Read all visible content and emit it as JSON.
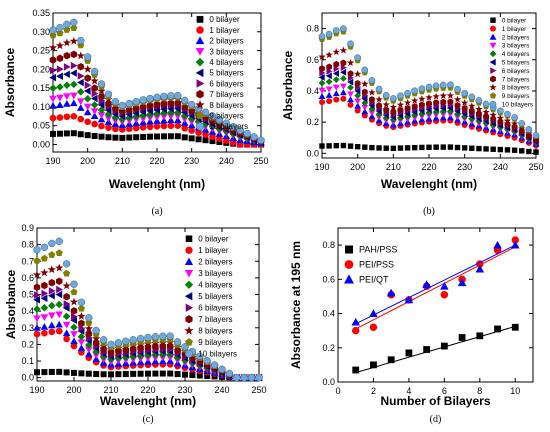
{
  "colors": {
    "s0": "#000000",
    "s1": "#ff0000",
    "s2": "#0000ff",
    "s3": "#ff00ff",
    "s4": "#008000",
    "s5": "#000080",
    "s6": "#800080",
    "s7": "#800000",
    "s8": "#808000",
    "s9": "#6fa8dc"
  },
  "chart_data": [
    {
      "type": "scatter",
      "caption": "(a)",
      "xlabel": "Wavelenght (nm)",
      "ylabel": "Absorbance",
      "xlim": [
        190,
        250
      ],
      "ylim": [
        -0.02,
        0.35
      ],
      "xticks": [
        190,
        200,
        210,
        220,
        230,
        240,
        250
      ],
      "yticks": [
        0.0,
        0.05,
        0.1,
        0.15,
        0.2,
        0.25,
        0.3,
        0.35
      ],
      "ytick_labels": [
        "0.00",
        "0.05",
        "0.10",
        "0.15",
        "0.20",
        "0.25",
        "0.30",
        "0.35"
      ],
      "legend_position": "top-right",
      "series": [
        {
          "name": "0 bilayer",
          "marker": "square",
          "color_key": "s0",
          "peak": 0.03,
          "plateau": 0.022,
          "tail": 0.0,
          "tailfade": 0.5
        },
        {
          "name": "1 bilayer",
          "marker": "circle",
          "color_key": "s1",
          "peak": 0.075,
          "plateau": 0.05,
          "tail": 0.0,
          "tailfade": 0.5
        },
        {
          "name": "2 bilayers",
          "marker": "triangle-up",
          "color_key": "s2",
          "peak": 0.11,
          "plateau": 0.065,
          "tail": 0.012,
          "tailfade": 0.7
        },
        {
          "name": "3 bilayers",
          "marker": "triangle-down",
          "color_key": "s3",
          "peak": 0.13,
          "plateau": 0.075,
          "tail": 0.018,
          "tailfade": 0.7
        },
        {
          "name": "4 bilayers",
          "marker": "diamond",
          "color_key": "s4",
          "peak": 0.16,
          "plateau": 0.085,
          "tail": 0.022,
          "tailfade": 0.7
        },
        {
          "name": "5 bilayers",
          "marker": "triangle-left",
          "color_key": "s5",
          "peak": 0.19,
          "plateau": 0.095,
          "tail": 0.025,
          "tailfade": 0.7
        },
        {
          "name": "6 bilayers",
          "marker": "triangle-right",
          "color_key": "s6",
          "peak": 0.21,
          "plateau": 0.105,
          "tail": 0.028,
          "tailfade": 0.7
        },
        {
          "name": "7 bilayers",
          "marker": "hexagon",
          "color_key": "s7",
          "peak": 0.24,
          "plateau": 0.11,
          "tail": 0.03,
          "tailfade": 0.7
        },
        {
          "name": "8 bilayers",
          "marker": "star",
          "color_key": "s7",
          "peak": 0.275,
          "plateau": 0.12,
          "tail": 0.032,
          "tailfade": 0.7
        },
        {
          "name": "9 bilayers",
          "marker": "pentagon",
          "color_key": "s8",
          "peak": 0.31,
          "plateau": 0.125,
          "tail": 0.035,
          "tailfade": 0.7
        },
        {
          "name": "10 bilayers",
          "marker": "sphere",
          "color_key": "s9",
          "peak": 0.325,
          "plateau": 0.13,
          "tail": 0.038,
          "tailfade": 0.7
        }
      ]
    },
    {
      "type": "scatter",
      "caption": "(b)",
      "xlabel": "Wavelenght (nm)",
      "ylabel": "Absorbance",
      "xlim": [
        190,
        250
      ],
      "ylim": [
        -0.03,
        0.9
      ],
      "xticks": [
        190,
        200,
        210,
        220,
        230,
        240,
        250
      ],
      "yticks": [
        0.0,
        0.2,
        0.4,
        0.6,
        0.8
      ],
      "ytick_labels": [
        "0.0",
        "0.2",
        "0.4",
        "0.6",
        "0.8"
      ],
      "legend_position": "top-right",
      "series": [
        {
          "name": "0 bilayer",
          "marker": "square",
          "color_key": "s0",
          "peak": 0.05,
          "plateau": 0.04,
          "tail": 0.02,
          "tailfade": 0.6
        },
        {
          "name": "1 bilayer",
          "marker": "circle",
          "color_key": "s1",
          "peak": 0.35,
          "plateau": 0.21,
          "tail": 0.1,
          "tailfade": 0.5
        },
        {
          "name": "2 bilayers",
          "marker": "triangle-up",
          "color_key": "s2",
          "peak": 0.39,
          "plateau": 0.23,
          "tail": 0.12,
          "tailfade": 0.5
        },
        {
          "name": "3 bilayers",
          "marker": "triangle-down",
          "color_key": "s3",
          "peak": 0.43,
          "plateau": 0.25,
          "tail": 0.13,
          "tailfade": 0.5
        },
        {
          "name": "4 bilayers",
          "marker": "diamond",
          "color_key": "s4",
          "peak": 0.48,
          "plateau": 0.27,
          "tail": 0.14,
          "tailfade": 0.5
        },
        {
          "name": "5 bilayers",
          "marker": "triangle-left",
          "color_key": "s5",
          "peak": 0.52,
          "plateau": 0.29,
          "tail": 0.15,
          "tailfade": 0.5
        },
        {
          "name": "6 bilayers",
          "marker": "triangle-right",
          "color_key": "s6",
          "peak": 0.55,
          "plateau": 0.31,
          "tail": 0.16,
          "tailfade": 0.5
        },
        {
          "name": "7 bilayers",
          "marker": "hexagon",
          "color_key": "s7",
          "peak": 0.58,
          "plateau": 0.33,
          "tail": 0.17,
          "tailfade": 0.5
        },
        {
          "name": "8 bilayers",
          "marker": "star",
          "color_key": "s7",
          "peak": 0.66,
          "plateau": 0.37,
          "tail": 0.19,
          "tailfade": 0.5
        },
        {
          "name": "9 bilayers",
          "marker": "pentagon",
          "color_key": "s8",
          "peak": 0.78,
          "plateau": 0.42,
          "tail": 0.22,
          "tailfade": 0.5
        },
        {
          "name": "10 bilayers",
          "marker": "sphere",
          "color_key": "s9",
          "peak": 0.8,
          "plateau": 0.44,
          "tail": 0.23,
          "tailfade": 0.5
        }
      ]
    },
    {
      "type": "scatter",
      "caption": "(c)",
      "xlabel": "Wavelenght (nm)",
      "ylabel": "Absorbance",
      "xlim": [
        190,
        250
      ],
      "ylim": [
        -0.02,
        0.9
      ],
      "xticks": [
        190,
        200,
        210,
        220,
        230,
        240,
        250
      ],
      "yticks": [
        0.0,
        0.1,
        0.2,
        0.3,
        0.4,
        0.5,
        0.6,
        0.7,
        0.8,
        0.9
      ],
      "ytick_labels": [
        "0.0",
        "0.1",
        "0.2",
        "0.3",
        "0.4",
        "0.5",
        "0.6",
        "0.7",
        "0.8",
        "0.9"
      ],
      "legend_position": "top-right",
      "series": [
        {
          "name": "0 bilayer",
          "marker": "square",
          "color_key": "s0",
          "peak": 0.035,
          "plateau": 0.025,
          "tail": 0.0,
          "tailfade": 0.6
        },
        {
          "name": "1 bilayer",
          "marker": "circle",
          "color_key": "s1",
          "peak": 0.28,
          "plateau": 0.08,
          "tail": 0.0,
          "tailfade": 0.9
        },
        {
          "name": "2 bilayers",
          "marker": "triangle-up",
          "color_key": "s2",
          "peak": 0.32,
          "plateau": 0.1,
          "tail": 0.0,
          "tailfade": 0.9
        },
        {
          "name": "3 bilayers",
          "marker": "triangle-down",
          "color_key": "s3",
          "peak": 0.38,
          "plateau": 0.12,
          "tail": 0.0,
          "tailfade": 0.9
        },
        {
          "name": "4 bilayers",
          "marker": "diamond",
          "color_key": "s4",
          "peak": 0.44,
          "plateau": 0.14,
          "tail": 0.0,
          "tailfade": 0.9
        },
        {
          "name": "5 bilayers",
          "marker": "triangle-left",
          "color_key": "s5",
          "peak": 0.5,
          "plateau": 0.16,
          "tail": 0.0,
          "tailfade": 0.9
        },
        {
          "name": "6 bilayers",
          "marker": "triangle-right",
          "color_key": "s6",
          "peak": 0.53,
          "plateau": 0.17,
          "tail": 0.0,
          "tailfade": 0.9
        },
        {
          "name": "7 bilayers",
          "marker": "hexagon",
          "color_key": "s7",
          "peak": 0.58,
          "plateau": 0.19,
          "tail": 0.0,
          "tailfade": 0.9
        },
        {
          "name": "8 bilayers",
          "marker": "star",
          "color_key": "s7",
          "peak": 0.66,
          "plateau": 0.21,
          "tail": 0.0,
          "tailfade": 0.9
        },
        {
          "name": "9 bilayers",
          "marker": "pentagon",
          "color_key": "s8",
          "peak": 0.75,
          "plateau": 0.23,
          "tail": 0.0,
          "tailfade": 0.9
        },
        {
          "name": "10 bilayers",
          "marker": "sphere",
          "color_key": "s9",
          "peak": 0.82,
          "plateau": 0.25,
          "tail": 0.0,
          "tailfade": 0.9
        }
      ]
    },
    {
      "type": "scatter",
      "caption": "(d)",
      "xlabel": "Number of Bilayers",
      "ylabel": "Absorbance at 195 nm",
      "xlim": [
        0,
        11
      ],
      "ylim": [
        0,
        0.9
      ],
      "xticks": [
        0,
        2,
        4,
        6,
        8,
        10
      ],
      "yticks": [
        0.0,
        0.2,
        0.4,
        0.6,
        0.8
      ],
      "ytick_labels": [
        "0.0",
        "0.2",
        "0.4",
        "0.6",
        "0.8"
      ],
      "legend_position": "top-left",
      "x": [
        1,
        2,
        3,
        4,
        5,
        6,
        7,
        8,
        9,
        10
      ],
      "series": [
        {
          "name": "PAH/PSS",
          "marker": "square",
          "color_key": "s0",
          "values": [
            0.07,
            0.1,
            0.13,
            0.17,
            0.19,
            0.21,
            0.26,
            0.27,
            0.31,
            0.32
          ],
          "fit": [
            0.055,
            0.325
          ]
        },
        {
          "name": "PEI/PSS",
          "marker": "circle",
          "color_key": "s1",
          "values": [
            0.3,
            0.32,
            0.51,
            0.48,
            0.56,
            0.51,
            0.6,
            0.69,
            0.77,
            0.83
          ],
          "fit": [
            0.31,
            0.79
          ]
        },
        {
          "name": "PEI/QT",
          "marker": "triangle-up",
          "color_key": "s2",
          "values": [
            0.35,
            0.4,
            0.52,
            0.48,
            0.57,
            0.56,
            0.58,
            0.66,
            0.8,
            0.8
          ],
          "fit": [
            0.34,
            0.8
          ]
        }
      ]
    }
  ]
}
